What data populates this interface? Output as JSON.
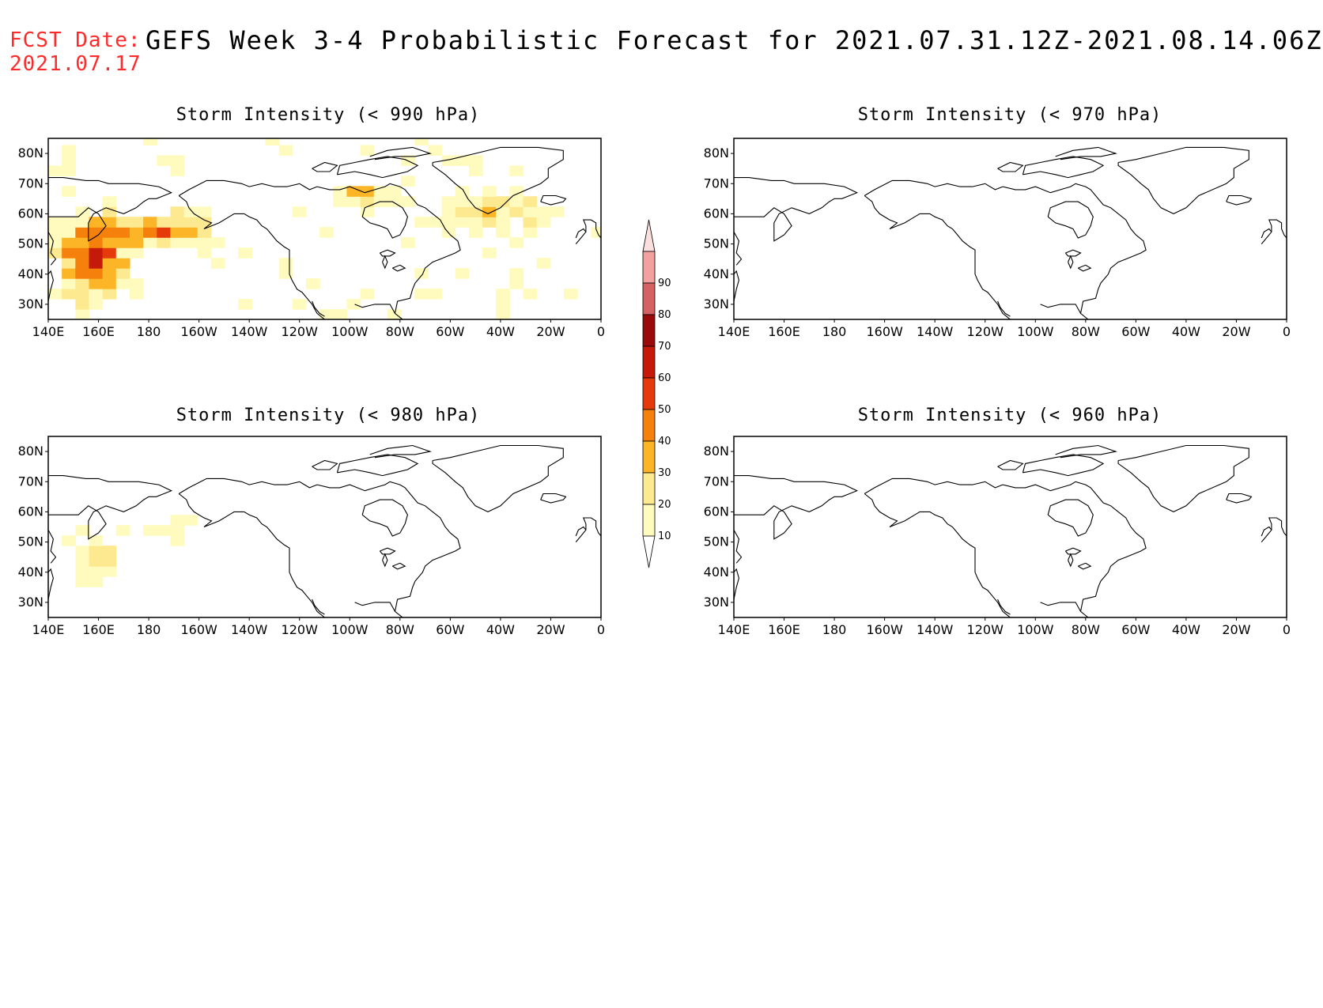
{
  "header": {
    "date_label": "FCST Date:",
    "date_value": "2021.07.17",
    "title": "GEFS Week 3-4 Probabilistic Forecast for 2021.07.31.12Z-2021.08.14.06Z"
  },
  "panels": [
    {
      "title": "Storm Intensity (< 990 hPa)",
      "intensity": "high"
    },
    {
      "title": "Storm Intensity (< 970 hPa)",
      "intensity": "none"
    },
    {
      "title": "Storm Intensity (< 980 hPa)",
      "intensity": "low"
    },
    {
      "title": "Storm Intensity (< 960 hPa)",
      "intensity": "none"
    }
  ],
  "axes": {
    "lat_labels": [
      "80N",
      "70N",
      "60N",
      "50N",
      "40N",
      "30N"
    ],
    "lon_labels": [
      "140E",
      "160E",
      "180",
      "160W",
      "140W",
      "120W",
      "100W",
      "80W",
      "60W",
      "40W",
      "20W",
      "0"
    ],
    "lat_range": [
      25,
      85
    ],
    "lon_range": [
      140,
      360
    ]
  },
  "colorbar": {
    "levels": [
      "10",
      "20",
      "30",
      "40",
      "50",
      "60",
      "70",
      "80",
      "90"
    ],
    "colors": [
      "#fffbbf",
      "#fde98f",
      "#fbb526",
      "#f5800b",
      "#e53b0b",
      "#c51a0a",
      "#9b0a0a",
      "#d56262",
      "#f2a0a0",
      "#fbdede"
    ]
  }
}
